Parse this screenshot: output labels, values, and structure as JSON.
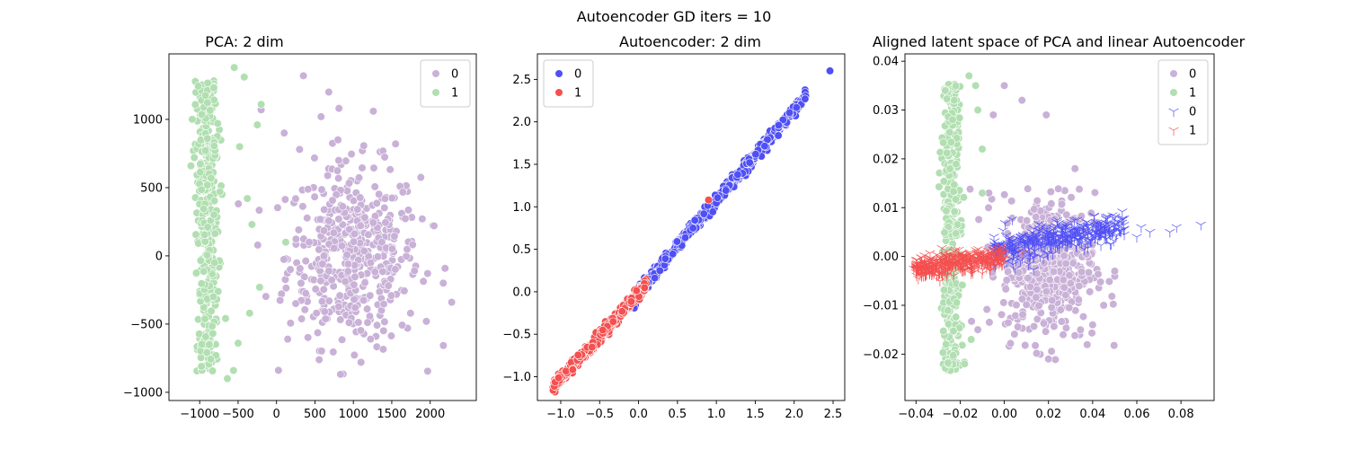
{
  "figure": {
    "suptitle": "Autoencoder GD iters = 10"
  },
  "colors": {
    "pca_0": "#c9b1d7",
    "pca_1": "#b1dfb1",
    "ae_0": "#4f4ff5",
    "ae_1": "#f54f4f"
  },
  "chart_data": [
    {
      "type": "scatter",
      "title": "PCA: 2 dim",
      "xlabel": "",
      "ylabel": "",
      "xlim": [
        -1400,
        2600
      ],
      "ylim": [
        -1060,
        1480
      ],
      "xticks": [
        -1000,
        -500,
        0,
        500,
        1000,
        1500,
        2000
      ],
      "yticks": [
        -1000,
        -500,
        0,
        500,
        1000
      ],
      "xtick_labels": [
        "−1000",
        "−500",
        "0",
        "500",
        "1000",
        "1500",
        "2000"
      ],
      "ytick_labels": [
        "−1000",
        "−500",
        "0",
        "500",
        "1000"
      ],
      "legend": {
        "position": "top-right",
        "entries": [
          {
            "label": "0",
            "marker": "circle",
            "color_key": "pca_0"
          },
          {
            "label": "1",
            "marker": "circle",
            "color_key": "pca_1"
          }
        ]
      },
      "series": [
        {
          "name": "0",
          "marker": "circle",
          "color_key": "pca_0",
          "distribution": {
            "kind": "blob",
            "count": 480,
            "cx": 1000,
            "cy": 0,
            "sx": 430,
            "sy": 330,
            "outliers": [
              [
                350,
                1320
              ],
              [
                680,
                1200
              ],
              [
                1260,
                1060
              ],
              [
                580,
                1020
              ],
              [
                800,
                850
              ],
              [
                100,
                900
              ],
              [
                300,
                780
              ],
              [
                1100,
                -780
              ],
              [
                1950,
                -480
              ],
              [
                2280,
                -340
              ],
              [
                2050,
                220
              ],
              [
                2170,
                -200
              ],
              [
                1550,
                820
              ],
              [
                -200,
                1070
              ],
              [
                250,
                -350
              ],
              [
                180,
                -100
              ]
            ]
          }
        },
        {
          "name": "1",
          "marker": "circle",
          "color_key": "pca_1",
          "distribution": {
            "kind": "band",
            "count": 380,
            "cx": -900,
            "sx": 75,
            "y_min": -940,
            "y_max": 1380,
            "outliers": [
              [
                -550,
                1380
              ],
              [
                -420,
                1310
              ],
              [
                -200,
                1110
              ],
              [
                -250,
                960
              ],
              [
                -480,
                800
              ],
              [
                -380,
                420
              ],
              [
                -320,
                230
              ],
              [
                120,
                100
              ],
              [
                -220,
                -230
              ],
              [
                -350,
                -420
              ],
              [
                -500,
                -640
              ],
              [
                -560,
                -840
              ],
              [
                -640,
                -900
              ]
            ]
          }
        }
      ]
    },
    {
      "type": "scatter",
      "title": "Autoencoder: 2 dim",
      "xlabel": "",
      "ylabel": "",
      "xlim": [
        -1.3,
        2.65
      ],
      "ylim": [
        -1.28,
        2.8
      ],
      "xticks": [
        -1.0,
        -0.5,
        0.0,
        0.5,
        1.0,
        1.5,
        2.0,
        2.5
      ],
      "yticks": [
        -1.0,
        -0.5,
        0.0,
        0.5,
        1.0,
        1.5,
        2.0,
        2.5
      ],
      "xtick_labels": [
        "−1.0",
        "−0.5",
        "0.0",
        "0.5",
        "1.0",
        "1.5",
        "2.0",
        "2.5"
      ],
      "ytick_labels": [
        "−1.0",
        "−0.5",
        "0.0",
        "0.5",
        "1.0",
        "1.5",
        "2.0",
        "2.5"
      ],
      "legend": {
        "position": "top-left",
        "entries": [
          {
            "label": "0",
            "marker": "circle",
            "color_key": "ae_0"
          },
          {
            "label": "1",
            "marker": "circle",
            "color_key": "ae_1"
          }
        ]
      },
      "series": [
        {
          "name": "0",
          "marker": "circle",
          "color_key": "ae_0",
          "distribution": {
            "kind": "line",
            "count": 430,
            "x_min": -0.1,
            "x_max": 2.15,
            "slope": 1.07,
            "intercept": 0.0,
            "spread": 0.04,
            "outliers": [
              [
                2.46,
                2.6
              ],
              [
                2.14,
                2.27
              ],
              [
                1.8,
                1.96
              ]
            ]
          }
        },
        {
          "name": "1",
          "marker": "circle",
          "color_key": "ae_1",
          "distribution": {
            "kind": "line",
            "count": 430,
            "x_min": -1.1,
            "x_max": 0.1,
            "slope": 1.0,
            "intercept": -0.02,
            "spread": 0.035,
            "outliers": [
              [
                0.9,
                1.08
              ]
            ]
          }
        }
      ]
    },
    {
      "type": "scatter",
      "title": "Aligned latent space of PCA and linear Autoencoder",
      "xlabel": "",
      "ylabel": "",
      "xlim": [
        -0.045,
        0.095
      ],
      "ylim": [
        -0.0295,
        0.0415
      ],
      "xticks": [
        -0.04,
        -0.02,
        0.0,
        0.02,
        0.04,
        0.06,
        0.08
      ],
      "yticks": [
        -0.02,
        -0.01,
        0.0,
        0.01,
        0.02,
        0.03,
        0.04
      ],
      "xtick_labels": [
        "−0.04",
        "−0.02",
        "0.00",
        "0.02",
        "0.04",
        "0.06",
        "0.08"
      ],
      "ytick_labels": [
        "−0.02",
        "−0.01",
        "0.00",
        "0.01",
        "0.02",
        "0.03",
        "0.04"
      ],
      "legend": {
        "position": "top-right",
        "entries": [
          {
            "label": "0",
            "marker": "circle",
            "color_key": "pca_0"
          },
          {
            "label": "1",
            "marker": "circle",
            "color_key": "pca_1"
          },
          {
            "label": "0",
            "marker": "tri",
            "color_key": "ae_0"
          },
          {
            "label": "1",
            "marker": "tri",
            "color_key": "ae_1"
          }
        ]
      },
      "series": [
        {
          "name": "0",
          "marker": "circle",
          "color_key": "pca_0",
          "distribution": {
            "kind": "blob",
            "count": 460,
            "cx": 0.02,
            "cy": -0.002,
            "sx": 0.0105,
            "sy": 0.0075,
            "outliers": [
              [
                0.0,
                0.035
              ],
              [
                0.008,
                0.032
              ],
              [
                0.019,
                0.029
              ],
              [
                -0.005,
                0.029
              ],
              [
                0.04,
                -0.014
              ],
              [
                0.045,
                -0.01
              ],
              [
                0.02,
                -0.021
              ],
              [
                0.032,
                0.018
              ],
              [
                -0.007,
                0.013
              ],
              [
                -0.012,
                -0.015
              ],
              [
                0.05,
                -0.003
              ]
            ]
          }
        },
        {
          "name": "1",
          "marker": "circle",
          "color_key": "pca_1",
          "distribution": {
            "kind": "band",
            "count": 380,
            "cx": -0.024,
            "sx": 0.002,
            "y_min": -0.026,
            "y_max": 0.038,
            "outliers": [
              [
                -0.016,
                0.037
              ],
              [
                -0.013,
                0.035
              ],
              [
                -0.012,
                0.03
              ],
              [
                -0.01,
                0.022
              ],
              [
                -0.01,
                0.013
              ],
              [
                -0.015,
                -0.017
              ],
              [
                -0.018,
                -0.022
              ]
            ]
          }
        },
        {
          "name": "0",
          "marker": "tri",
          "color_key": "ae_0",
          "distribution": {
            "kind": "line",
            "count": 420,
            "x_min": -0.005,
            "x_max": 0.055,
            "slope": 0.09,
            "intercept": 0.0015,
            "spread": 0.0016,
            "outliers": [
              [
                0.089,
                0.0065
              ],
              [
                0.078,
                0.006
              ],
              [
                0.075,
                0.005
              ],
              [
                0.066,
                0.005
              ],
              [
                0.062,
                0.006
              ],
              [
                0.06,
                0.004
              ]
            ]
          }
        },
        {
          "name": "1",
          "marker": "tri",
          "color_key": "ae_1",
          "distribution": {
            "kind": "line",
            "count": 420,
            "x_min": -0.04,
            "x_max": 0.0,
            "slope": 0.07,
            "intercept": 0.0002,
            "spread": 0.0011,
            "outliers": [
              [
                -0.041,
                -0.0025
              ],
              [
                0.008,
                0.0008
              ]
            ]
          }
        }
      ]
    }
  ]
}
